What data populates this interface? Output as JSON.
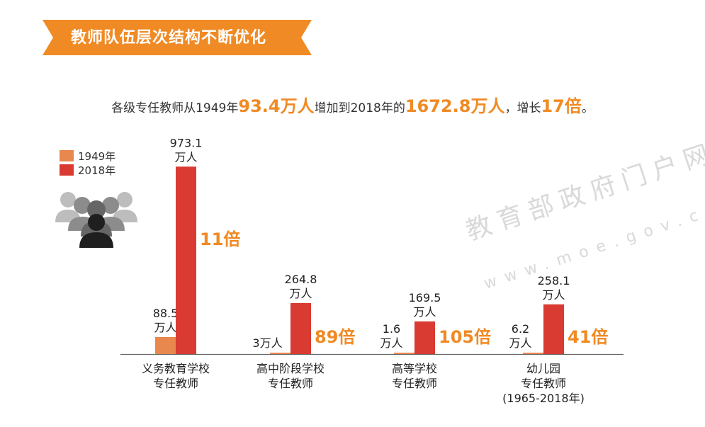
{
  "header": {
    "title": "教师队伍层次结构不断优化"
  },
  "headline": {
    "part1": "各级专任教师从1949年",
    "hl1": "93.4万人",
    "part2": "增加到2018年的",
    "hl2": "1672.8万人",
    "part3": "，增长",
    "hl3": "17倍",
    "part4": "。"
  },
  "watermark": {
    "text": "教育部政府门户网站",
    "url": "www.moe.gov.cn"
  },
  "colors": {
    "accent": "#f08a24",
    "bar1949": "#e8874e",
    "bar2018": "#d93a32",
    "banner": "#f08a24"
  },
  "icons": [
    "people-group-icon"
  ],
  "chart_data": {
    "type": "bar",
    "categories": [
      [
        "义务教育学校",
        "专任教师"
      ],
      [
        "高中阶段学校",
        "专任教师"
      ],
      [
        "高等学校",
        "专任教师"
      ],
      [
        "幼儿园",
        "专任教师",
        "(1965-2018年)"
      ]
    ],
    "series": [
      {
        "name": "1949年",
        "values": [
          88.5,
          3,
          1.6,
          6.2
        ],
        "labels": [
          [
            "88.5",
            "万人"
          ],
          [
            "3万人"
          ],
          [
            "1.6",
            "万人"
          ],
          [
            "6.2",
            "万人"
          ]
        ]
      },
      {
        "name": "2018年",
        "values": [
          973.1,
          264.8,
          169.5,
          258.1
        ],
        "labels": [
          [
            "973.1",
            "万人"
          ],
          [
            "264.8",
            "万人"
          ],
          [
            "169.5",
            "万人"
          ],
          [
            "258.1",
            "万人"
          ]
        ]
      }
    ],
    "annotations": [
      "11倍",
      "89倍",
      "105倍",
      "41倍"
    ],
    "ylim": [
      0,
      1000
    ]
  }
}
